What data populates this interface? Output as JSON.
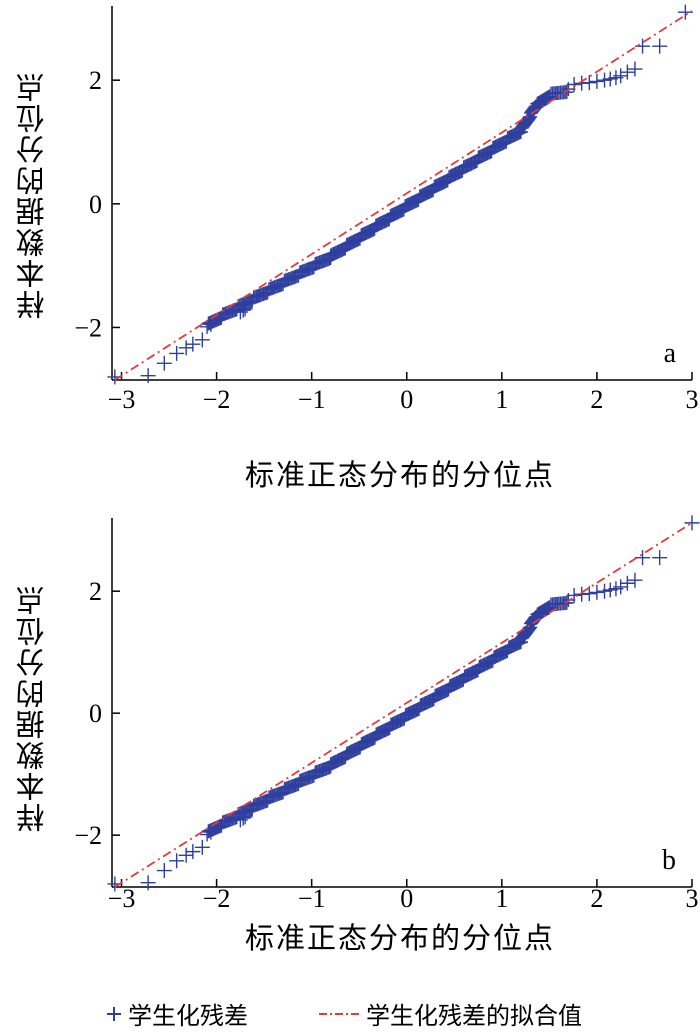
{
  "chart_data": [
    {
      "type": "scatter",
      "panel_letter": "a",
      "xlabel": "标准正态分布的分位点",
      "ylabel": "样本数据的分位点",
      "xlim": [
        -3.1,
        3.0
      ],
      "ylim": [
        -2.85,
        3.2
      ],
      "xticks": [
        "-3",
        "-2",
        "-1",
        "0",
        "1",
        "2",
        "3"
      ],
      "yticks": [
        "-2",
        "0",
        "2"
      ],
      "series": [
        {
          "name": "学生化残差",
          "marker": "+",
          "color": "#2e3f9e",
          "dense_segments": [
            [
              -2.1,
              -1.95,
              0.98
            ],
            [
              -1.95,
              -0.8,
              0.84
            ],
            [
              -0.8,
              1.2,
              1.02
            ],
            [
              1.2,
              1.36,
              2.5
            ],
            [
              1.36,
              1.5,
              1.23
            ],
            [
              1.5,
              1.7,
              0.4
            ]
          ],
          "points": [
            [
              -3.07,
              -2.8
            ],
            [
              -2.72,
              -2.78
            ],
            [
              -2.55,
              -2.58
            ],
            [
              -2.42,
              -2.42
            ],
            [
              -2.32,
              -2.33
            ],
            [
              -2.25,
              -2.27
            ],
            [
              -2.15,
              -2.2
            ],
            [
              -2.06,
              -1.95
            ],
            [
              -1.75,
              -1.75
            ],
            [
              -1.72,
              -1.72
            ],
            [
              -1.7,
              -1.7
            ],
            [
              1.76,
              1.93
            ],
            [
              1.84,
              1.95
            ],
            [
              1.92,
              1.96
            ],
            [
              2.0,
              1.98
            ],
            [
              2.08,
              2.0
            ],
            [
              2.14,
              2.02
            ],
            [
              2.2,
              2.04
            ],
            [
              2.25,
              2.07
            ],
            [
              2.32,
              2.13
            ],
            [
              2.4,
              2.18
            ],
            [
              2.48,
              2.55
            ],
            [
              2.66,
              2.55
            ],
            [
              2.93,
              3.1
            ]
          ]
        },
        {
          "name": "学生化残差的拟合值",
          "type": "line",
          "style": "dash-dot",
          "color": "#e53a3a",
          "x": [
            -3.07,
            3.0
          ],
          "y": [
            -2.85,
            3.12
          ]
        }
      ]
    },
    {
      "type": "scatter",
      "panel_letter": "b",
      "xlabel": "标准正态分布的分位点",
      "ylabel": "样本数据的分位点",
      "xlim": [
        -3.1,
        3.0
      ],
      "ylim": [
        -2.85,
        3.2
      ],
      "xticks": [
        "-3",
        "-2",
        "-1",
        "0",
        "1",
        "2",
        "3"
      ],
      "yticks": [
        "-2",
        "0",
        "2"
      ],
      "series": [
        {
          "name": "学生化残差",
          "marker": "+",
          "color": "#2e3f9e",
          "dense_segments": [
            [
              -2.1,
              -1.95,
              0.98
            ],
            [
              -1.95,
              -0.8,
              0.84
            ],
            [
              -0.8,
              1.2,
              1.02
            ],
            [
              1.2,
              1.36,
              2.5
            ],
            [
              1.36,
              1.5,
              1.23
            ],
            [
              1.5,
              1.7,
              0.4
            ]
          ],
          "points": [
            [
              -3.07,
              -2.8
            ],
            [
              -2.72,
              -2.78
            ],
            [
              -2.55,
              -2.58
            ],
            [
              -2.42,
              -2.42
            ],
            [
              -2.32,
              -2.33
            ],
            [
              -2.25,
              -2.27
            ],
            [
              -2.15,
              -2.2
            ],
            [
              -2.06,
              -1.95
            ],
            [
              -1.75,
              -1.75
            ],
            [
              -1.72,
              -1.72
            ],
            [
              -1.7,
              -1.7
            ],
            [
              1.76,
              1.93
            ],
            [
              1.84,
              1.95
            ],
            [
              1.92,
              1.96
            ],
            [
              2.0,
              1.98
            ],
            [
              2.08,
              2.0
            ],
            [
              2.14,
              2.02
            ],
            [
              2.2,
              2.04
            ],
            [
              2.25,
              2.07
            ],
            [
              2.32,
              2.13
            ],
            [
              2.4,
              2.18
            ],
            [
              2.48,
              2.55
            ],
            [
              2.66,
              2.55
            ],
            [
              3.0,
              3.12
            ]
          ]
        },
        {
          "name": "学生化残差的拟合值",
          "type": "line",
          "style": "dash-dot",
          "color": "#e53a3a",
          "x": [
            -3.07,
            3.0
          ],
          "y": [
            -2.85,
            3.12
          ]
        }
      ]
    }
  ],
  "legend": {
    "items": [
      {
        "label": "学生化残差",
        "marker": "+",
        "color": "#2e3f9e"
      },
      {
        "label": "学生化残差的拟合值",
        "marker": "dash-dot",
        "color": "#e53a3a"
      }
    ],
    "position": "bottom"
  }
}
